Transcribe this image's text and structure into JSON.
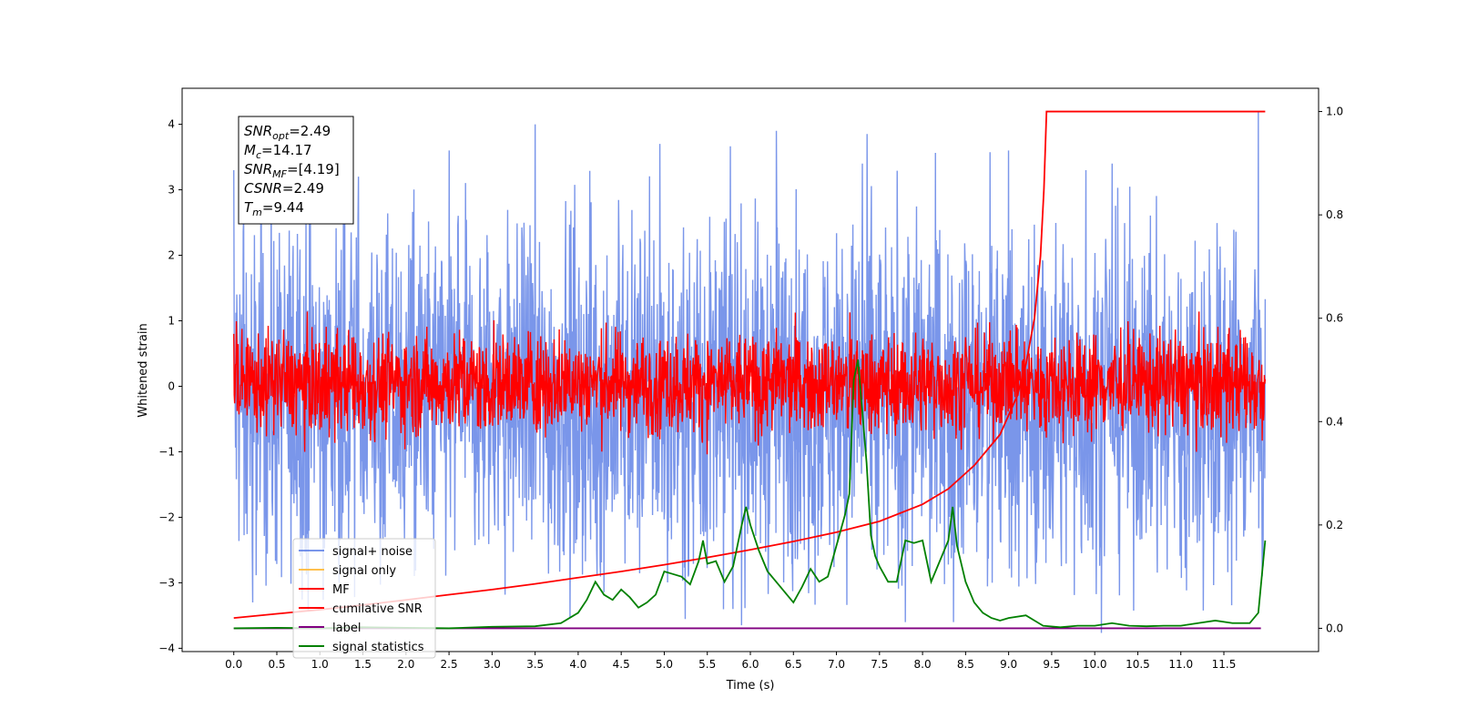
{
  "chart_data": {
    "type": "line",
    "xlabel": "Time (s)",
    "ylabel": "Whitened strain",
    "xlim": [
      -0.6,
      12.6
    ],
    "ylim": [
      -4.05,
      4.55
    ],
    "y2lim": [
      -0.045,
      1.045
    ],
    "x_ticks": [
      0.0,
      0.5,
      1.0,
      1.5,
      2.0,
      2.5,
      3.0,
      3.5,
      4.0,
      4.5,
      5.0,
      5.5,
      6.0,
      6.5,
      7.0,
      7.5,
      8.0,
      8.5,
      9.0,
      9.5,
      10.0,
      10.5,
      11.0,
      11.5
    ],
    "x_tick_labels": [
      "0.0",
      "0.5",
      "1.0",
      "1.5",
      "2.0",
      "2.5",
      "3.0",
      "3.5",
      "4.0",
      "4.5",
      "5.0",
      "5.5",
      "6.0",
      "6.5",
      "7.0",
      "7.5",
      "8.0",
      "8.5",
      "9.0",
      "9.5",
      "10.0",
      "10.5",
      "11.0",
      "11.5"
    ],
    "y_ticks": [
      -4,
      -3,
      -2,
      -1,
      0,
      1,
      2,
      3,
      4
    ],
    "y_tick_labels": [
      "−4",
      "−3",
      "−2",
      "−1",
      "0",
      "1",
      "2",
      "3",
      "4"
    ],
    "y2_ticks": [
      0.0,
      0.2,
      0.4,
      0.6,
      0.8,
      1.0
    ],
    "y2_tick_labels": [
      "0.0",
      "0.2",
      "0.4",
      "0.6",
      "0.8",
      "1.0"
    ],
    "grid": false,
    "legend_placement": "lower-left",
    "info_box": {
      "lines": [
        {
          "main": "SNR",
          "sub": "opt",
          "rest": "=2.49"
        },
        {
          "main": "M",
          "sub": "c",
          "rest": "=14.17"
        },
        {
          "main": "SNR",
          "sub": "MF",
          "rest": "=[4.19]"
        },
        {
          "main": "CSNR",
          "sub": "",
          "rest": "=2.49"
        },
        {
          "main": "T",
          "sub": "m",
          "rest": "=9.44"
        }
      ]
    },
    "series": [
      {
        "name": "signal+ noise",
        "color": "#4169e1",
        "opacity": 0.7,
        "axis": "left",
        "x_range": [
          0.0,
          11.98
        ],
        "envelope_x": [
          0.0,
          1.0,
          2.0,
          3.0,
          4.0,
          5.0,
          6.0,
          7.0,
          8.0,
          9.0,
          10.0,
          11.0,
          11.98
        ],
        "envelope_upper": [
          1.2,
          1.2,
          1.2,
          1.2,
          1.2,
          1.2,
          1.2,
          1.2,
          1.2,
          1.2,
          1.2,
          1.2,
          1.2
        ],
        "envelope_lower": [
          -1.6,
          -1.6,
          -1.6,
          -1.6,
          -1.6,
          -1.6,
          -1.6,
          -1.6,
          -1.6,
          -1.6,
          -1.6,
          -1.6,
          -1.6
        ],
        "peaks": [
          {
            "x": 0.0,
            "y": 3.3
          },
          {
            "x": 0.22,
            "y": -3.3
          },
          {
            "x": 1.45,
            "y": 3.2
          },
          {
            "x": 2.5,
            "y": 3.6
          },
          {
            "x": 3.5,
            "y": 4.0
          },
          {
            "x": 4.95,
            "y": 3.7
          },
          {
            "x": 6.3,
            "y": 3.9
          },
          {
            "x": 7.3,
            "y": 3.4
          },
          {
            "x": 7.8,
            "y": -3.6
          },
          {
            "x": 8.36,
            "y": -3.6
          },
          {
            "x": 9.0,
            "y": 3.6
          },
          {
            "x": 9.9,
            "y": 3.3
          },
          {
            "x": 10.2,
            "y": 3.4
          },
          {
            "x": 11.9,
            "y": 4.2
          },
          {
            "x": 5.8,
            "y": -3.4
          }
        ]
      },
      {
        "name": "signal only",
        "color": "#ffc04d",
        "axis": "left",
        "x": [],
        "y": []
      },
      {
        "name": "MF",
        "color": "#ff0000",
        "axis": "left",
        "x_range": [
          0.0,
          11.98
        ],
        "envelope_upper": 0.45,
        "envelope_lower": -0.35,
        "peaks": [
          {
            "x": 0.0,
            "y": 0.8
          },
          {
            "x": 0.0,
            "y": -0.65
          },
          {
            "x": 7.3,
            "y": 0.55
          },
          {
            "x": 9.1,
            "y": 0.9
          },
          {
            "x": 10.3,
            "y": 0.9
          }
        ]
      },
      {
        "name": "cumilative SNR",
        "color": "#ff0000",
        "axis": "right",
        "x": [
          0.0,
          0.5,
          1.0,
          1.5,
          2.0,
          2.5,
          3.0,
          3.5,
          4.0,
          4.5,
          5.0,
          5.5,
          6.0,
          6.5,
          7.0,
          7.5,
          8.0,
          8.3,
          8.6,
          8.9,
          9.1,
          9.2,
          9.3,
          9.37,
          9.41,
          9.44,
          10.0,
          11.0,
          11.98
        ],
        "y": [
          0.02,
          0.028,
          0.036,
          0.045,
          0.055,
          0.065,
          0.075,
          0.086,
          0.098,
          0.11,
          0.123,
          0.137,
          0.152,
          0.168,
          0.186,
          0.207,
          0.24,
          0.27,
          0.315,
          0.375,
          0.45,
          0.51,
          0.6,
          0.72,
          0.85,
          1.0,
          1.0,
          1.0,
          1.0
        ]
      },
      {
        "name": "label",
        "color": "#800080",
        "axis": "right",
        "x": [
          0.0,
          11.93
        ],
        "y": [
          0.0,
          0.0
        ]
      },
      {
        "name": "signal statistics",
        "color": "#008000",
        "axis": "right",
        "x": [
          0.0,
          0.5,
          1.0,
          1.5,
          2.0,
          2.5,
          3.0,
          3.5,
          3.8,
          4.0,
          4.1,
          4.2,
          4.3,
          4.4,
          4.5,
          4.6,
          4.7,
          4.8,
          4.9,
          5.0,
          5.1,
          5.2,
          5.3,
          5.4,
          5.45,
          5.5,
          5.6,
          5.7,
          5.8,
          5.9,
          5.95,
          6.0,
          6.1,
          6.2,
          6.3,
          6.4,
          6.5,
          6.6,
          6.7,
          6.8,
          6.9,
          7.0,
          7.1,
          7.15,
          7.2,
          7.25,
          7.3,
          7.35,
          7.4,
          7.45,
          7.5,
          7.6,
          7.7,
          7.8,
          7.9,
          8.0,
          8.1,
          8.2,
          8.3,
          8.35,
          8.4,
          8.5,
          8.6,
          8.7,
          8.8,
          8.9,
          9.0,
          9.2,
          9.4,
          9.6,
          9.8,
          10.0,
          10.2,
          10.4,
          10.6,
          10.8,
          11.0,
          11.2,
          11.4,
          11.6,
          11.8,
          11.9,
          11.98
        ],
        "y": [
          0.0,
          0.001,
          0.0,
          0.002,
          0.001,
          0.0,
          0.003,
          0.004,
          0.01,
          0.03,
          0.055,
          0.09,
          0.065,
          0.055,
          0.075,
          0.06,
          0.04,
          0.05,
          0.065,
          0.11,
          0.105,
          0.1,
          0.085,
          0.13,
          0.17,
          0.125,
          0.13,
          0.09,
          0.12,
          0.2,
          0.235,
          0.2,
          0.15,
          0.11,
          0.09,
          0.07,
          0.05,
          0.08,
          0.115,
          0.09,
          0.1,
          0.16,
          0.22,
          0.26,
          0.48,
          0.52,
          0.42,
          0.32,
          0.18,
          0.14,
          0.12,
          0.09,
          0.09,
          0.17,
          0.165,
          0.17,
          0.09,
          0.13,
          0.17,
          0.235,
          0.16,
          0.09,
          0.05,
          0.03,
          0.02,
          0.015,
          0.02,
          0.025,
          0.005,
          0.002,
          0.005,
          0.005,
          0.01,
          0.005,
          0.004,
          0.005,
          0.005,
          0.01,
          0.015,
          0.01,
          0.01,
          0.03,
          0.17
        ]
      }
    ]
  }
}
